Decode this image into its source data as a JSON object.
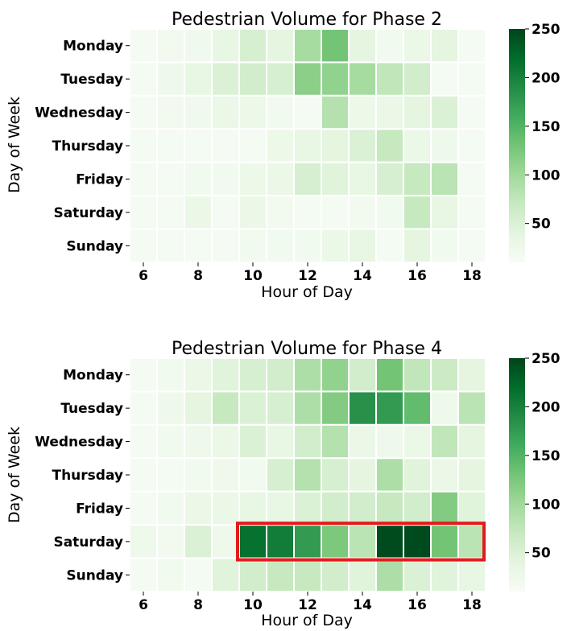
{
  "chart_data": [
    {
      "type": "heatmap",
      "title": "Pedestrian Volume for Phase 2",
      "xlabel": "Hour of Day",
      "ylabel": "Day of Week",
      "x": [
        6,
        7,
        8,
        9,
        10,
        11,
        12,
        13,
        14,
        15,
        16,
        17,
        18
      ],
      "x_ticks": [
        "6",
        "8",
        "10",
        "12",
        "14",
        "16",
        "18"
      ],
      "y": [
        "Monday",
        "Tuesday",
        "Wednesday",
        "Thursday",
        "Friday",
        "Saturday",
        "Sunday"
      ],
      "values": [
        [
          15,
          18,
          22,
          35,
          55,
          40,
          95,
          130,
          40,
          20,
          30,
          40,
          15
        ],
        [
          15,
          25,
          35,
          50,
          60,
          55,
          115,
          110,
          95,
          75,
          60,
          15,
          15
        ],
        [
          15,
          18,
          22,
          30,
          28,
          20,
          15,
          85,
          28,
          30,
          40,
          50,
          15
        ],
        [
          15,
          15,
          15,
          15,
          15,
          28,
          35,
          40,
          50,
          70,
          30,
          25,
          15
        ],
        [
          15,
          15,
          20,
          20,
          28,
          30,
          55,
          45,
          35,
          55,
          70,
          80,
          15
        ],
        [
          15,
          15,
          30,
          15,
          30,
          18,
          15,
          15,
          18,
          20,
          70,
          35,
          15
        ],
        [
          15,
          15,
          15,
          15,
          20,
          20,
          20,
          30,
          35,
          15,
          40,
          20,
          15
        ]
      ],
      "colorbar": {
        "vmin": 10,
        "vmax": 250,
        "ticks": [
          "50",
          "100",
          "150",
          "200",
          "250"
        ]
      },
      "colormap": [
        "#f7fcf5",
        "#e5f5e0",
        "#c7e9c0",
        "#a1d99b",
        "#74c476",
        "#41ab5d",
        "#238b45",
        "#006d2c",
        "#00441b"
      ]
    },
    {
      "type": "heatmap",
      "title": "Pedestrian Volume for Phase 4",
      "xlabel": "Hour of Day",
      "ylabel": "Day of Week",
      "x": [
        6,
        7,
        8,
        9,
        10,
        11,
        12,
        13,
        14,
        15,
        16,
        17,
        18
      ],
      "x_ticks": [
        "6",
        "8",
        "10",
        "12",
        "14",
        "16",
        "18"
      ],
      "y": [
        "Monday",
        "Tuesday",
        "Wednesday",
        "Thursday",
        "Friday",
        "Saturday",
        "Sunday"
      ],
      "values": [
        [
          15,
          20,
          30,
          45,
          55,
          60,
          90,
          110,
          60,
          130,
          75,
          65,
          40
        ],
        [
          15,
          25,
          40,
          70,
          50,
          55,
          90,
          120,
          185,
          175,
          140,
          25,
          80
        ],
        [
          15,
          20,
          25,
          30,
          50,
          35,
          60,
          85,
          30,
          25,
          30,
          75,
          40
        ],
        [
          15,
          15,
          20,
          25,
          20,
          55,
          85,
          55,
          40,
          90,
          45,
          30,
          40
        ],
        [
          15,
          20,
          30,
          30,
          35,
          35,
          50,
          60,
          60,
          70,
          60,
          120,
          45
        ],
        [
          25,
          18,
          50,
          25,
          215,
          205,
          175,
          125,
          80,
          245,
          245,
          130,
          80
        ],
        [
          15,
          20,
          15,
          45,
          60,
          70,
          70,
          60,
          45,
          90,
          50,
          45,
          35
        ]
      ],
      "colorbar": {
        "vmin": 10,
        "vmax": 250,
        "ticks": [
          "50",
          "100",
          "150",
          "200",
          "250"
        ]
      },
      "colormap": [
        "#f7fcf5",
        "#e5f5e0",
        "#c7e9c0",
        "#a1d99b",
        "#74c476",
        "#41ab5d",
        "#238b45",
        "#006d2c",
        "#00441b"
      ],
      "highlight": {
        "row": "Saturday",
        "from_hour": 10,
        "to_hour": 18,
        "color": "#e41a1c"
      }
    }
  ]
}
